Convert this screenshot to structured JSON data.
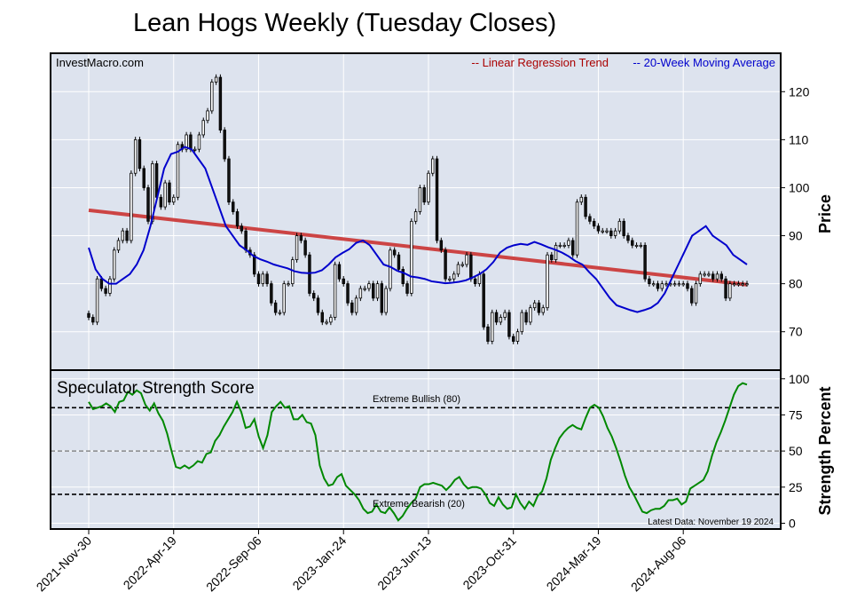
{
  "title": "Lean Hogs Weekly (Tuesday Closes)",
  "watermark": "InvestMacro.com",
  "legend": {
    "regression": "-- Linear Regression Trend",
    "ma": "-- 20-Week Moving Average",
    "regression_color": "#cc0000",
    "ma_color": "#0000cc"
  },
  "price_panel": {
    "ylabel": "Price",
    "yticks": [
      70,
      80,
      90,
      100,
      110,
      120
    ],
    "ylim": [
      62,
      128
    ],
    "background": "#dde3ee"
  },
  "strength_panel": {
    "title": "Speculator Strength Score",
    "ylabel": "Strength Percent",
    "yticks": [
      0,
      25,
      50,
      75,
      100
    ],
    "ylim": [
      -4,
      106
    ],
    "extreme_bullish_label": "Extreme Bullish (80)",
    "extreme_bearish_label": "Extreme Bearish (20)",
    "latest_data": "Latest Data: November 19 2024",
    "line_color": "#008800"
  },
  "x_axis": {
    "tick_labels": [
      "2021-Nov-30",
      "2022-Apr-19",
      "2022-Sep-06",
      "2023-Jan-24",
      "2023-Jun-13",
      "2023-Oct-31",
      "2024-Mar-19",
      "2024-Aug-06"
    ],
    "tick_weeks": [
      0,
      20,
      40,
      60,
      80,
      100,
      120,
      140
    ],
    "last_week": 155
  },
  "chart_data": [
    {
      "type": "candlestick",
      "title": "Lean Hogs Weekly (Tuesday Closes)",
      "ylabel": "Price",
      "x_start": "2021-Nov-30",
      "x_end": "2024-Nov-19",
      "ylim": [
        62,
        128
      ],
      "grid": true,
      "legend_placement": "top-right",
      "closes": [
        73,
        72,
        81,
        79,
        78,
        81,
        87,
        89,
        91,
        89,
        103,
        110,
        104,
        100,
        93,
        105,
        98,
        96,
        101,
        97,
        98,
        109,
        108,
        111,
        108,
        108,
        111,
        114,
        116,
        122,
        123,
        112,
        106,
        97,
        95,
        92,
        91,
        87,
        86,
        82,
        80,
        82,
        80,
        76,
        74,
        74,
        80,
        80,
        85,
        90,
        89,
        86,
        78,
        77,
        74,
        72,
        72,
        73,
        84,
        81,
        80,
        76,
        74,
        77,
        79,
        79,
        80,
        77,
        80,
        74,
        79,
        87,
        86,
        83,
        80,
        78,
        93,
        95,
        100,
        97,
        103,
        106,
        89,
        87,
        81,
        81,
        82,
        84,
        84,
        86,
        81,
        80,
        82,
        71,
        68,
        74,
        72,
        73,
        74,
        69,
        68,
        70,
        74,
        72,
        75,
        76,
        74,
        75,
        86,
        85,
        88,
        88,
        88,
        89,
        86,
        97,
        98,
        94,
        93,
        92,
        91,
        91,
        91,
        90,
        91,
        93,
        90,
        89,
        88,
        88,
        88,
        81,
        80,
        80,
        79,
        80,
        80,
        80,
        80,
        80,
        80,
        79,
        76,
        80,
        82,
        82,
        82,
        81,
        82,
        81,
        77,
        80,
        80,
        80,
        80,
        80
      ],
      "regression": {
        "start": 95.3,
        "end": 79.8
      },
      "moving_average": [
        87.5,
        83,
        81,
        80,
        80,
        81,
        82,
        84,
        87,
        92,
        98,
        104,
        107,
        107.5,
        108.5,
        108,
        106,
        104,
        100,
        96,
        92,
        90,
        88,
        87,
        85.8,
        85.1,
        84.6,
        84.0,
        83.6,
        83.2,
        82.6,
        82.3,
        82.2,
        82.3,
        82.8,
        84,
        85.5,
        86.4,
        87.2,
        88.5,
        89,
        88,
        86,
        84,
        83.5,
        82.7,
        82.2,
        81.5,
        81.3,
        81,
        80.5,
        80.3,
        80.1,
        80.2,
        80.4,
        80.7,
        81.3,
        82,
        83,
        84.5,
        86.5,
        87.5,
        88,
        88.3,
        88.1,
        88.7,
        88.2,
        87.6,
        87.1,
        86.5,
        85.7,
        84.7,
        84,
        82.4,
        81,
        79,
        77,
        75.5,
        75,
        74.5,
        74.1,
        74.5,
        75,
        76,
        78,
        81,
        84,
        87,
        90,
        91,
        92,
        90,
        89,
        88,
        86,
        85,
        84
      ],
      "moving_average_note": "20-Week Moving Average"
    },
    {
      "type": "line",
      "title": "Speculator Strength Score",
      "ylabel": "Strength Percent",
      "ylim": [
        0,
        100
      ],
      "reference_lines": [
        {
          "value": 80,
          "label": "Extreme Bullish (80)"
        },
        {
          "value": 50
        },
        {
          "value": 20,
          "label": "Extreme Bearish (20)"
        }
      ],
      "values": [
        84,
        79,
        80,
        81,
        83,
        81,
        77,
        84,
        85,
        91,
        89,
        92,
        90,
        82,
        78,
        83,
        76,
        71,
        62,
        50,
        39,
        38,
        40,
        38,
        40,
        43,
        42,
        48,
        49,
        57,
        61,
        67,
        72,
        77,
        84,
        77,
        66,
        67,
        72,
        60,
        52,
        61,
        77,
        81,
        84,
        80,
        81,
        72,
        72,
        75,
        70,
        69,
        61,
        40,
        31,
        26,
        27,
        32,
        34,
        26,
        23,
        20,
        16,
        10,
        7,
        8,
        13,
        8,
        7,
        11,
        7,
        2,
        5,
        10,
        14,
        17,
        25,
        27,
        27,
        28,
        27,
        26,
        23,
        26,
        30,
        32,
        27,
        24,
        25,
        25,
        24,
        20,
        14,
        12,
        18,
        13,
        10,
        11,
        20,
        14,
        10,
        15,
        12,
        19,
        22,
        31,
        44,
        52,
        59,
        63,
        66,
        68,
        66,
        65,
        73,
        80,
        82,
        80,
        74,
        66,
        60,
        52,
        43,
        33,
        25,
        20,
        14,
        8,
        7,
        9,
        10,
        10,
        12,
        16,
        16,
        17,
        13,
        15,
        24,
        26,
        28,
        30,
        36,
        47,
        56,
        63,
        71,
        80,
        89,
        95,
        97,
        96
      ]
    }
  ]
}
